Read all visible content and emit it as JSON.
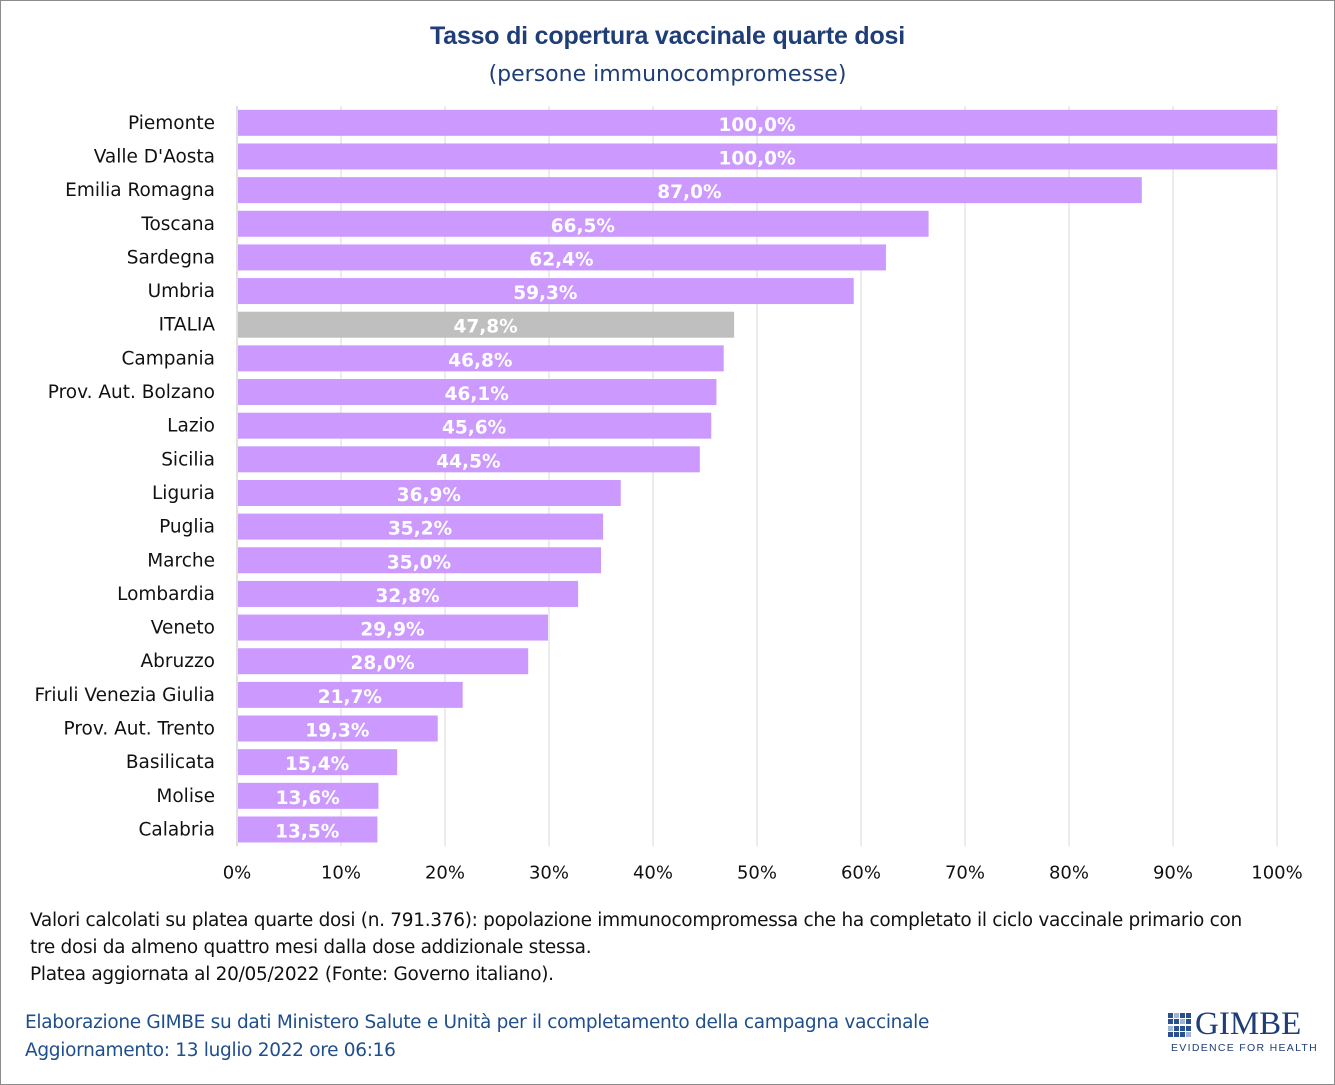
{
  "chart_data": {
    "type": "bar",
    "orientation": "horizontal",
    "title": "Tasso di copertura vaccinale quarte dosi",
    "subtitle": "(persone immunocompromesse)",
    "categories": [
      "Piemonte",
      "Valle D'Aosta",
      "Emilia Romagna",
      "Toscana",
      "Sardegna",
      "Umbria",
      "ITALIA",
      "Campania",
      "Prov. Aut. Bolzano",
      "Lazio",
      "Sicilia",
      "Liguria",
      "Puglia",
      "Marche",
      "Lombardia",
      "Veneto",
      "Abruzzo",
      "Friuli Venezia Giulia",
      "Prov. Aut. Trento",
      "Basilicata",
      "Molise",
      "Calabria"
    ],
    "values": [
      100.0,
      100.0,
      87.0,
      66.5,
      62.4,
      59.3,
      47.8,
      46.8,
      46.1,
      45.6,
      44.5,
      36.9,
      35.2,
      35.0,
      32.8,
      29.9,
      28.0,
      21.7,
      19.3,
      15.4,
      13.6,
      13.5
    ],
    "labels": [
      "100,0%",
      "100,0%",
      "87,0%",
      "66,5%",
      "62,4%",
      "59,3%",
      "47,8%",
      "46,8%",
      "46,1%",
      "45,6%",
      "44,5%",
      "36,9%",
      "35,2%",
      "35,0%",
      "32,8%",
      "29,9%",
      "28,0%",
      "21,7%",
      "19,3%",
      "15,4%",
      "13,6%",
      "13,5%"
    ],
    "highlight_category": "ITALIA",
    "xlim": [
      0,
      100
    ],
    "xticks": [
      "0%",
      "10%",
      "20%",
      "30%",
      "40%",
      "50%",
      "60%",
      "70%",
      "80%",
      "90%",
      "100%"
    ],
    "grid": true,
    "colors": {
      "bar": "#cc99ff",
      "highlight": "#bfbfbf",
      "label": "#ffffff",
      "grid": "#d9d9d9"
    }
  },
  "notes": {
    "line1": "Valori calcolati su platea quarte dosi (n. 791.376): popolazione immunocompromessa che ha completato il ciclo vaccinale primario con",
    "line2": "tre dosi da almeno quattro mesi dalla dose addizionale stessa.",
    "line3": "Platea aggiornata al 20/05/2022 (Fonte: Governo italiano)."
  },
  "footer": {
    "source": "Elaborazione GIMBE su dati Ministero Salute e Unità per il completamento della campagna vaccinale",
    "updated": "Aggiornamento: 13 luglio 2022 ore 06:16"
  },
  "logo": {
    "name": "GIMBE",
    "tagline": "EVIDENCE FOR HEALTH",
    "icon": "gimbe-logo-mark-icon"
  }
}
